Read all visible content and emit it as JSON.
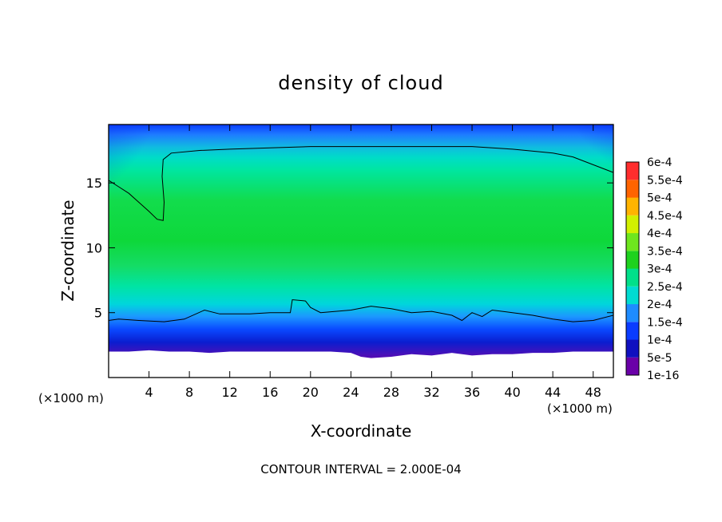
{
  "chart_data": {
    "type": "heatmap",
    "title": "density of cloud",
    "xlabel": "X-coordinate",
    "ylabel": "Z-coordinate",
    "x_unit": "(×1000 m)",
    "z_unit": "(×1000 m)",
    "x_ticks": [
      4,
      8,
      12,
      16,
      20,
      24,
      28,
      32,
      36,
      40,
      44,
      48
    ],
    "z_ticks": [
      5,
      10,
      15
    ],
    "xlim": [
      0,
      50
    ],
    "zlim": [
      0,
      19.5
    ],
    "grid": false,
    "legend": "right",
    "colorbar": {
      "labels": [
        "1e-16",
        "5e-5",
        "1e-4",
        "1.5e-4",
        "2e-4",
        "2.5e-4",
        "3e-4",
        "3.5e-4",
        "4e-4",
        "4.5e-4",
        "5e-4",
        "5.5e-4",
        "6e-4"
      ],
      "colors": [
        "#6a00a8",
        "#1010c0",
        "#0a3cff",
        "#1e8cff",
        "#00dcd2",
        "#00e08a",
        "#1ed21e",
        "#6ee61e",
        "#d2f000",
        "#ffb400",
        "#ff6400",
        "#ff2d2d",
        "#ff8c8c"
      ]
    },
    "contour_line_value": 0.0002,
    "contour_line_upper": [
      [
        0,
        15.2
      ],
      [
        1,
        14.7
      ],
      [
        2,
        14.2
      ],
      [
        3,
        13.5
      ],
      [
        4,
        12.8
      ],
      [
        4.8,
        12.2
      ],
      [
        5.4,
        12.1
      ],
      [
        5.5,
        13.5
      ],
      [
        5.3,
        15.5
      ],
      [
        5.4,
        16.8
      ],
      [
        6.2,
        17.3
      ],
      [
        9,
        17.5
      ],
      [
        12,
        17.6
      ],
      [
        16,
        17.7
      ],
      [
        20,
        17.8
      ],
      [
        24,
        17.8
      ],
      [
        28,
        17.8
      ],
      [
        32,
        17.8
      ],
      [
        36,
        17.8
      ],
      [
        40,
        17.6
      ],
      [
        44,
        17.3
      ],
      [
        46,
        17.0
      ],
      [
        48,
        16.4
      ],
      [
        50,
        15.8
      ]
    ],
    "contour_line_lower": [
      [
        0,
        4.4
      ],
      [
        1,
        4.5
      ],
      [
        3,
        4.4
      ],
      [
        5.5,
        4.3
      ],
      [
        7.5,
        4.5
      ],
      [
        9.5,
        5.2
      ],
      [
        11,
        4.9
      ],
      [
        14,
        4.9
      ],
      [
        16,
        5.0
      ],
      [
        18,
        5.0
      ],
      [
        18.2,
        6.0
      ],
      [
        19.5,
        5.9
      ],
      [
        20,
        5.4
      ],
      [
        21,
        5.0
      ],
      [
        24,
        5.2
      ],
      [
        26,
        5.5
      ],
      [
        28,
        5.3
      ],
      [
        30,
        5.0
      ],
      [
        32,
        5.1
      ],
      [
        34,
        4.8
      ],
      [
        35,
        4.4
      ],
      [
        36,
        5.0
      ],
      [
        37,
        4.7
      ],
      [
        38,
        5.2
      ],
      [
        40,
        5.0
      ],
      [
        42,
        4.8
      ],
      [
        44,
        4.5
      ],
      [
        46,
        4.3
      ],
      [
        48,
        4.4
      ],
      [
        50,
        4.8
      ]
    ],
    "cloud_base": [
      [
        0,
        2.0
      ],
      [
        2,
        2.0
      ],
      [
        4,
        2.1
      ],
      [
        6,
        2.0
      ],
      [
        8,
        2.0
      ],
      [
        10,
        1.9
      ],
      [
        12,
        2.0
      ],
      [
        14,
        2.0
      ],
      [
        16,
        2.0
      ],
      [
        18,
        2.0
      ],
      [
        20,
        2.0
      ],
      [
        22,
        2.0
      ],
      [
        24,
        1.9
      ],
      [
        25,
        1.6
      ],
      [
        26,
        1.5
      ],
      [
        28,
        1.6
      ],
      [
        30,
        1.8
      ],
      [
        32,
        1.7
      ],
      [
        34,
        1.9
      ],
      [
        36,
        1.7
      ],
      [
        38,
        1.8
      ],
      [
        40,
        1.8
      ],
      [
        42,
        1.9
      ],
      [
        44,
        1.9
      ],
      [
        46,
        2.0
      ],
      [
        48,
        2.0
      ],
      [
        50,
        2.0
      ]
    ],
    "footer": "CONTOUR INTERVAL = 2.000E-04"
  }
}
